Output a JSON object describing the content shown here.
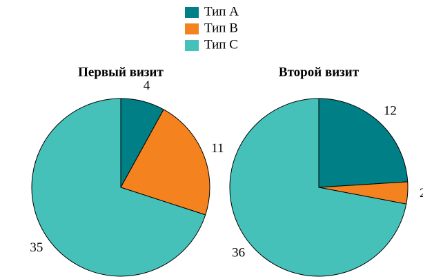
{
  "chart_data": [
    {
      "type": "pie",
      "title": "Первый визит",
      "categories": [
        "Тип A",
        "Тип B",
        "Тип C"
      ],
      "values": [
        4,
        11,
        35
      ],
      "colors": [
        "#007f86",
        "#f4831f",
        "#45c1b9"
      ]
    },
    {
      "type": "pie",
      "title": "Второй визит",
      "categories": [
        "Тип A",
        "Тип B",
        "Тип C"
      ],
      "values": [
        12,
        2,
        36
      ],
      "colors": [
        "#007f86",
        "#f4831f",
        "#45c1b9"
      ]
    }
  ]
}
